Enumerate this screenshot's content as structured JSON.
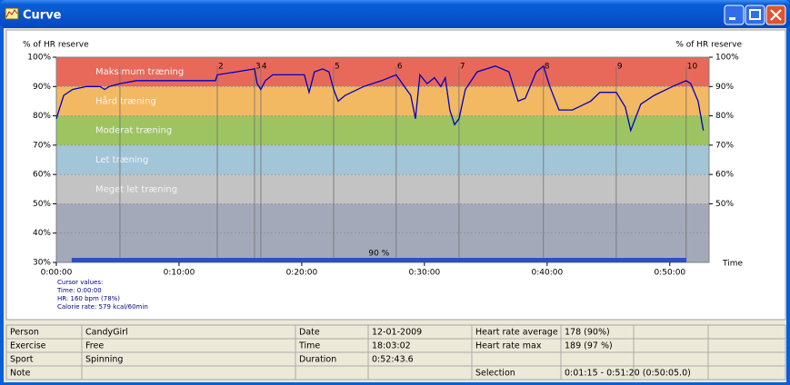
{
  "window": {
    "title": "Curve"
  },
  "chart_data": {
    "type": "line",
    "y_label_left": "% of HR reserve",
    "y_label_right": "% of HR reserve",
    "x_label": "Time",
    "xlim": [
      0,
      3192
    ],
    "xticks": [
      {
        "value": 0,
        "label": "0:00:00"
      },
      {
        "value": 600,
        "label": "0:10:00"
      },
      {
        "value": 1200,
        "label": "0:20:00"
      },
      {
        "value": 1800,
        "label": "0:30:00"
      },
      {
        "value": 2400,
        "label": "0:40:00"
      },
      {
        "value": 3000,
        "label": "0:50:00"
      }
    ],
    "ylim": [
      30,
      100
    ],
    "yticks": [
      {
        "value": 30,
        "label": "30%"
      },
      {
        "value": 40,
        "label": "40%"
      },
      {
        "value": 50,
        "label": "50%"
      },
      {
        "value": 60,
        "label": "60%"
      },
      {
        "value": 70,
        "label": "70%"
      },
      {
        "value": 80,
        "label": "80%"
      },
      {
        "value": 90,
        "label": "90%"
      },
      {
        "value": 100,
        "label": "100%"
      }
    ],
    "y2lim": [
      30,
      100
    ],
    "y2ticks": [
      {
        "value": 50,
        "label": "50%"
      },
      {
        "value": 60,
        "label": "60%"
      },
      {
        "value": 70,
        "label": "70%"
      },
      {
        "value": 80,
        "label": "80%"
      },
      {
        "value": 90,
        "label": "90%"
      },
      {
        "value": 100,
        "label": "100%"
      }
    ],
    "grid": true,
    "zones": [
      {
        "name": "Maksimum træning",
        "from": 90,
        "to": 100,
        "color": "#e8695a"
      },
      {
        "name": "Hård træning",
        "from": 80,
        "to": 90,
        "color": "#f3b862"
      },
      {
        "name": "Moderat træning",
        "from": 70,
        "to": 80,
        "color": "#9dc460"
      },
      {
        "name": "Let træning",
        "from": 60,
        "to": 70,
        "color": "#a2c5d8"
      },
      {
        "name": "Meget let træning",
        "from": 50,
        "to": 60,
        "color": "#c3c3c3"
      },
      {
        "from": 30,
        "to": 50,
        "color": "#a4a9ba"
      }
    ],
    "series": [
      {
        "name": "HR",
        "color": "#0000c0",
        "x": [
          0,
          18,
          36,
          80,
          147,
          213,
          236,
          258,
          311,
          391,
          480,
          613,
          724,
          778,
          787,
          880,
          969,
          982,
          1000,
          1022,
          1058,
          1147,
          1213,
          1236,
          1262,
          1302,
          1333,
          1356,
          1378,
          1413,
          1502,
          1591,
          1662,
          1702,
          1733,
          1756,
          1778,
          1813,
          1849,
          1880,
          1902,
          1924,
          1947,
          1969,
          2000,
          2058,
          2147,
          2213,
          2258,
          2293,
          2347,
          2382,
          2413,
          2458,
          2524,
          2613,
          2658,
          2738,
          2782,
          2809,
          2858,
          2924,
          3013,
          3080,
          3102,
          3138,
          3164
        ],
        "values": [
          79,
          83,
          87,
          89,
          90,
          90,
          89,
          90,
          91,
          92,
          92,
          92,
          92,
          92,
          94,
          95,
          96,
          91,
          89,
          92,
          94,
          94,
          94,
          88,
          95,
          96,
          95,
          89,
          85,
          87,
          90,
          92,
          94,
          90,
          87,
          79,
          94,
          91,
          93,
          90,
          93,
          82,
          77,
          79,
          89,
          95,
          97,
          95,
          85,
          86,
          95,
          97,
          90,
          82,
          82,
          85,
          88,
          88,
          83,
          75,
          84,
          87,
          90,
          92,
          91,
          85,
          75
        ]
      }
    ],
    "markers": {
      "x": [
        311,
        787,
        969,
        1000,
        1356,
        1662,
        1969,
        2382,
        2738,
        3080
      ],
      "labels": [
        null,
        "2",
        "3",
        "4",
        "5",
        "6",
        "7",
        "8",
        "9",
        "10"
      ]
    },
    "selection_bar": {
      "start": 75,
      "end": 3080,
      "label": "90 %"
    },
    "cursor_values": [
      "Cursor values:",
      "Time: 0:00:00",
      "HR: 160 bpm (78%)",
      "Calorie rate: 579 kcal/60min"
    ]
  },
  "table": {
    "rows": [
      [
        "Person",
        "CandyGirl",
        "Date",
        "12-01-2009",
        "Heart rate average",
        "178 (90%)"
      ],
      [
        "Exercise",
        "Free",
        "Time",
        "18:03:02",
        "Heart rate max",
        "189 (97 %)"
      ],
      [
        "Sport",
        "Spinning",
        "Duration",
        "0:52:43.6",
        null,
        null
      ],
      [
        "Note",
        null,
        null,
        null,
        "Selection",
        "0:01:15 - 0:51:20 (0:50:05.0)"
      ]
    ]
  }
}
